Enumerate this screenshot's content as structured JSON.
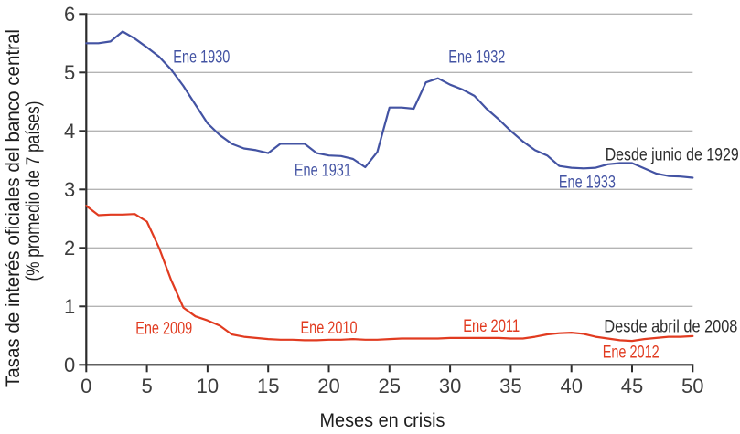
{
  "chart_data": {
    "type": "line",
    "title": "",
    "xlabel": "Meses en crisis",
    "ylabel_line1": "Tasas de interés oficiales del banco central",
    "ylabel_line2": "(% promedio de 7 países)",
    "xlim": [
      0,
      50
    ],
    "ylim": [
      0,
      6
    ],
    "xticks": [
      0,
      5,
      10,
      15,
      20,
      25,
      30,
      35,
      40,
      45,
      50
    ],
    "yticks": [
      0,
      1,
      2,
      3,
      4,
      5,
      6
    ],
    "grid": "horizontal gridlines at integer y values",
    "legend_position": "none (inline text annotations)",
    "colors": {
      "series_1929": "#4353a3",
      "series_2008": "#e13b20",
      "grid": "#b4b4b4",
      "axis": "#2b2b2b",
      "tick_text": "#3d3d3d",
      "annotation_text": "#2e2e2e"
    },
    "x": [
      0,
      1,
      2,
      3,
      4,
      5,
      6,
      7,
      8,
      9,
      10,
      11,
      12,
      13,
      14,
      15,
      16,
      17,
      18,
      19,
      20,
      21,
      22,
      23,
      24,
      25,
      26,
      27,
      28,
      29,
      30,
      31,
      32,
      33,
      34,
      35,
      36,
      37,
      38,
      39,
      40,
      41,
      42,
      43,
      44,
      45,
      46,
      47,
      48,
      49,
      50
    ],
    "series": [
      {
        "name": "Desde junio de 1929",
        "color": "#4353a3",
        "values": [
          5.5,
          5.5,
          5.53,
          5.7,
          5.58,
          5.43,
          5.27,
          5.05,
          4.77,
          4.45,
          4.13,
          3.93,
          3.78,
          3.7,
          3.67,
          3.62,
          3.78,
          3.78,
          3.78,
          3.62,
          3.58,
          3.57,
          3.52,
          3.38,
          3.64,
          4.4,
          4.4,
          4.38,
          4.83,
          4.9,
          4.79,
          4.71,
          4.6,
          4.38,
          4.2,
          4.0,
          3.82,
          3.67,
          3.58,
          3.4,
          3.37,
          3.36,
          3.37,
          3.43,
          3.45,
          3.45,
          3.36,
          3.27,
          3.23,
          3.22,
          3.2
        ]
      },
      {
        "name": "Desde abril de 2008",
        "color": "#e13b20",
        "values": [
          2.72,
          2.56,
          2.57,
          2.57,
          2.58,
          2.45,
          2.0,
          1.45,
          0.98,
          0.83,
          0.76,
          0.67,
          0.52,
          0.48,
          0.46,
          0.44,
          0.43,
          0.43,
          0.42,
          0.42,
          0.43,
          0.43,
          0.44,
          0.43,
          0.43,
          0.44,
          0.45,
          0.45,
          0.45,
          0.45,
          0.46,
          0.46,
          0.46,
          0.46,
          0.46,
          0.45,
          0.45,
          0.48,
          0.52,
          0.54,
          0.55,
          0.53,
          0.48,
          0.45,
          0.42,
          0.41,
          0.44,
          0.46,
          0.48,
          0.48,
          0.49
        ]
      }
    ],
    "annotations": [
      {
        "text": "Ene 1930",
        "x": 9.5,
        "y": 5.27,
        "color": "#4353a3",
        "anchor": "middle"
      },
      {
        "text": "Ene 1931",
        "x": 19.5,
        "y": 3.33,
        "color": "#4353a3",
        "anchor": "middle"
      },
      {
        "text": "Ene 1932",
        "x": 32.2,
        "y": 5.27,
        "color": "#4353a3",
        "anchor": "middle"
      },
      {
        "text": "Ene 1933",
        "x": 41.3,
        "y": 3.13,
        "color": "#4353a3",
        "anchor": "middle"
      },
      {
        "text": "Desde junio de 1929",
        "x": 53.8,
        "y": 3.6,
        "color": "#2e2e2e",
        "anchor": "end"
      },
      {
        "text": "Ene 2009",
        "x": 6.4,
        "y": 0.63,
        "color": "#e13b20",
        "anchor": "middle"
      },
      {
        "text": "Ene 2010",
        "x": 20.0,
        "y": 0.64,
        "color": "#e13b20",
        "anchor": "middle"
      },
      {
        "text": "Ene 2011",
        "x": 33.4,
        "y": 0.67,
        "color": "#e13b20",
        "anchor": "middle"
      },
      {
        "text": "Ene 2012",
        "x": 44.9,
        "y": 0.22,
        "color": "#e13b20",
        "anchor": "middle"
      },
      {
        "text": "Desde abril de 2008",
        "x": 53.7,
        "y": 0.66,
        "color": "#2e2e2e",
        "anchor": "end"
      }
    ]
  }
}
